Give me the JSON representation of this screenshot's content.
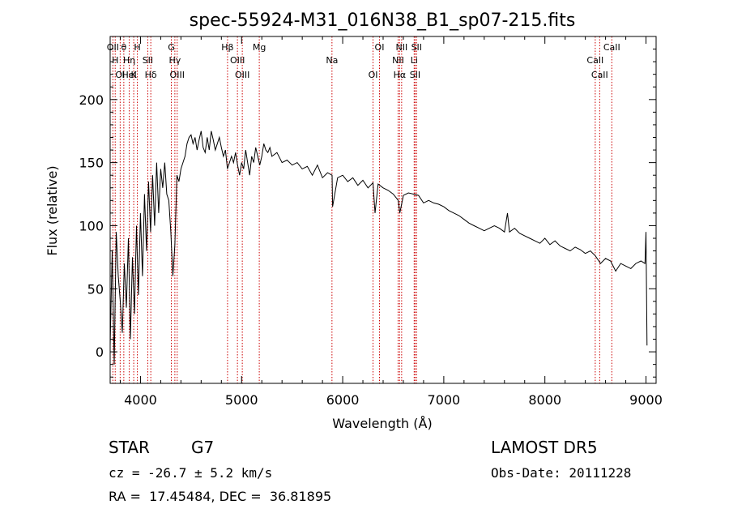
{
  "chart_data": {
    "type": "line",
    "title": "spec-55924-M31_016N38_B1_sp07-215.fits",
    "xlabel": "Wavelength (Å)",
    "ylabel": "Flux (relative)",
    "xlim": [
      3700,
      9100
    ],
    "ylim": [
      -25,
      250
    ],
    "xticks": [
      4000,
      5000,
      6000,
      7000,
      8000,
      9000
    ],
    "yticks": [
      0,
      50,
      100,
      150,
      200
    ],
    "grid": false,
    "series": [
      {
        "color": "#000000",
        "x": [
          3700,
          3720,
          3740,
          3760,
          3780,
          3800,
          3820,
          3840,
          3860,
          3880,
          3900,
          3920,
          3940,
          3960,
          3980,
          4000,
          4020,
          4040,
          4060,
          4080,
          4100,
          4120,
          4140,
          4160,
          4180,
          4200,
          4220,
          4240,
          4260,
          4280,
          4300,
          4320,
          4340,
          4360,
          4380,
          4400,
          4420,
          4440,
          4460,
          4480,
          4500,
          4520,
          4540,
          4560,
          4580,
          4600,
          4620,
          4640,
          4660,
          4680,
          4700,
          4720,
          4740,
          4760,
          4780,
          4800,
          4820,
          4840,
          4860,
          4880,
          4900,
          4920,
          4940,
          4960,
          4980,
          5000,
          5020,
          5040,
          5060,
          5080,
          5100,
          5120,
          5140,
          5160,
          5180,
          5200,
          5220,
          5240,
          5260,
          5280,
          5300,
          5350,
          5400,
          5450,
          5500,
          5550,
          5600,
          5650,
          5700,
          5750,
          5800,
          5850,
          5895,
          5900,
          5950,
          6000,
          6050,
          6100,
          6150,
          6200,
          6250,
          6300,
          6320,
          6350,
          6400,
          6450,
          6500,
          6550,
          6565,
          6600,
          6650,
          6700,
          6750,
          6800,
          6850,
          6900,
          6950,
          7000,
          7050,
          7100,
          7150,
          7200,
          7250,
          7300,
          7350,
          7400,
          7450,
          7500,
          7550,
          7600,
          7630,
          7650,
          7700,
          7750,
          7800,
          7850,
          7900,
          7950,
          8000,
          8050,
          8100,
          8150,
          8200,
          8250,
          8300,
          8350,
          8400,
          8450,
          8500,
          8550,
          8600,
          8650,
          8700,
          8750,
          8800,
          8850,
          8900,
          8950,
          8990,
          9000,
          9010
        ],
        "y": [
          5,
          80,
          -10,
          95,
          60,
          40,
          15,
          70,
          35,
          90,
          10,
          75,
          30,
          100,
          45,
          110,
          60,
          125,
          80,
          135,
          95,
          140,
          100,
          150,
          110,
          145,
          130,
          150,
          125,
          120,
          95,
          60,
          85,
          140,
          135,
          145,
          150,
          155,
          165,
          170,
          172,
          165,
          170,
          160,
          168,
          175,
          162,
          158,
          170,
          160,
          175,
          168,
          160,
          165,
          170,
          162,
          155,
          160,
          145,
          150,
          155,
          150,
          158,
          148,
          140,
          150,
          145,
          160,
          150,
          140,
          155,
          150,
          162,
          155,
          148,
          155,
          165,
          160,
          158,
          162,
          155,
          158,
          150,
          152,
          148,
          150,
          145,
          147,
          140,
          148,
          138,
          142,
          140,
          115,
          138,
          140,
          135,
          138,
          132,
          136,
          130,
          134,
          110,
          133,
          130,
          128,
          125,
          120,
          110,
          124,
          126,
          125,
          124,
          118,
          120,
          118,
          117,
          115,
          112,
          110,
          108,
          105,
          102,
          100,
          98,
          96,
          98,
          100,
          98,
          95,
          110,
          95,
          98,
          94,
          92,
          90,
          88,
          86,
          90,
          85,
          88,
          84,
          82,
          80,
          83,
          81,
          78,
          80,
          76,
          70,
          74,
          72,
          64,
          70,
          68,
          66,
          70,
          72,
          70,
          95,
          5
        ]
      }
    ],
    "lines": [
      {
        "wl": 3727,
        "labels": [
          "OII"
        ]
      },
      {
        "wl": 3750,
        "labels": [
          "H"
        ]
      },
      {
        "wl": 3799,
        "labels": [
          "OI"
        ]
      },
      {
        "wl": 3835,
        "labels": [
          "θ"
        ]
      },
      {
        "wl": 3889,
        "labels": [
          "Hη",
          "HeI"
        ]
      },
      {
        "wl": 3933,
        "labels": [
          "K"
        ]
      },
      {
        "wl": 3969,
        "labels": [
          "H"
        ]
      },
      {
        "wl": 4072,
        "labels": [
          "SII"
        ]
      },
      {
        "wl": 4102,
        "labels": [
          "Hδ"
        ]
      },
      {
        "wl": 4305,
        "labels": [
          "G"
        ]
      },
      {
        "wl": 4340,
        "labels": [
          "Hγ"
        ]
      },
      {
        "wl": 4363,
        "labels": [
          "OIII"
        ]
      },
      {
        "wl": 4861,
        "labels": [
          "Hβ"
        ]
      },
      {
        "wl": 4959,
        "labels": [
          "OIII"
        ]
      },
      {
        "wl": 5007,
        "labels": [
          "OIII"
        ]
      },
      {
        "wl": 5175,
        "labels": [
          "Mg"
        ]
      },
      {
        "wl": 5894,
        "labels": [
          "Na"
        ]
      },
      {
        "wl": 6300,
        "labels": [
          "OI"
        ]
      },
      {
        "wl": 6364,
        "labels": [
          "OI"
        ]
      },
      {
        "wl": 6548,
        "labels": [
          "NII"
        ]
      },
      {
        "wl": 6563,
        "labels": [
          "Hα"
        ]
      },
      {
        "wl": 6583,
        "labels": [
          "NII"
        ]
      },
      {
        "wl": 6707,
        "labels": [
          "Li"
        ]
      },
      {
        "wl": 6716,
        "labels": [
          "SII"
        ]
      },
      {
        "wl": 6731,
        "labels": [
          "SII"
        ]
      },
      {
        "wl": 8498,
        "labels": [
          "CaII"
        ]
      },
      {
        "wl": 8542,
        "labels": [
          "CaII"
        ]
      },
      {
        "wl": 8662,
        "labels": [
          "CaII"
        ]
      }
    ],
    "line_color": "#cc0000"
  },
  "info": {
    "class": "STAR",
    "subclass": "G7",
    "cz": "cz = -26.7 ± 5.2 km/s",
    "coords": "RA =  17.45484, DEC =  36.81895",
    "survey": "LAMOST DR5",
    "obs_date": "Obs-Date: 20111228"
  }
}
